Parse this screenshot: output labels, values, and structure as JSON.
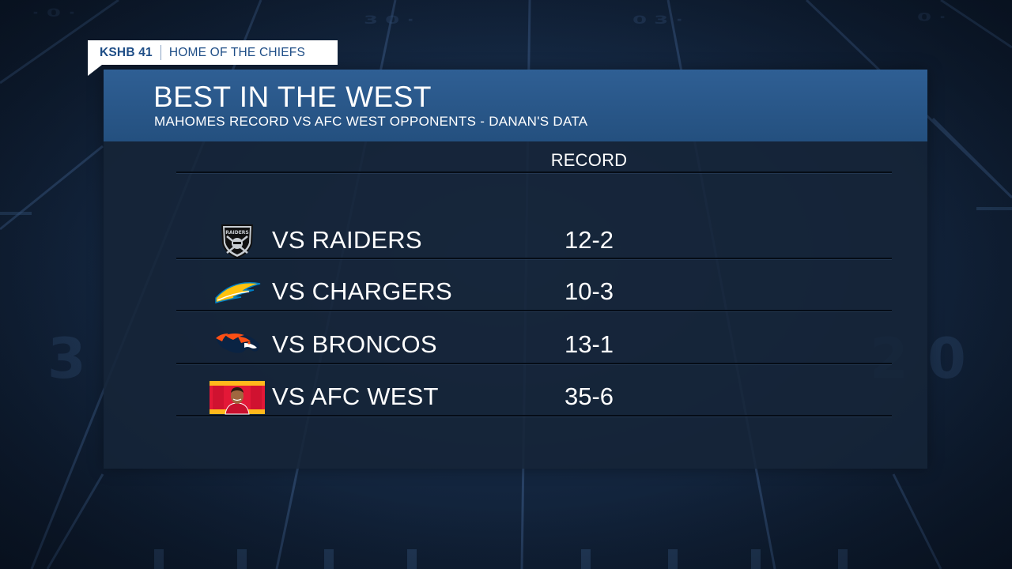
{
  "bug": {
    "station": "KSHB 41",
    "tagline": "HOME OF THE CHIEFS"
  },
  "graphic": {
    "title": "BEST IN THE WEST",
    "subtitle": "MAHOMES RECORD VS AFC WEST OPPONENTS - DANAN'S DATA",
    "column_header": "RECORD"
  },
  "rows": [
    {
      "label": "VS RAIDERS",
      "record": "12-2",
      "logo": "raiders-shield-logo"
    },
    {
      "label": "VS CHARGERS",
      "record": "10-3",
      "logo": "chargers-bolt-logo"
    },
    {
      "label": "VS BRONCOS",
      "record": "13-1",
      "logo": "broncos-horse-logo"
    },
    {
      "label": "VS AFC WEST",
      "record": "35-6",
      "logo": "mahomes-headshot-photo"
    }
  ],
  "colors": {
    "header_blue": "#2a5a8e",
    "panel_bg": "#162438",
    "bug_text": "#1e4d86",
    "chargers_gold": "#ffc20e",
    "broncos_orange": "#fb4f14",
    "chiefs_red": "#e31837"
  }
}
